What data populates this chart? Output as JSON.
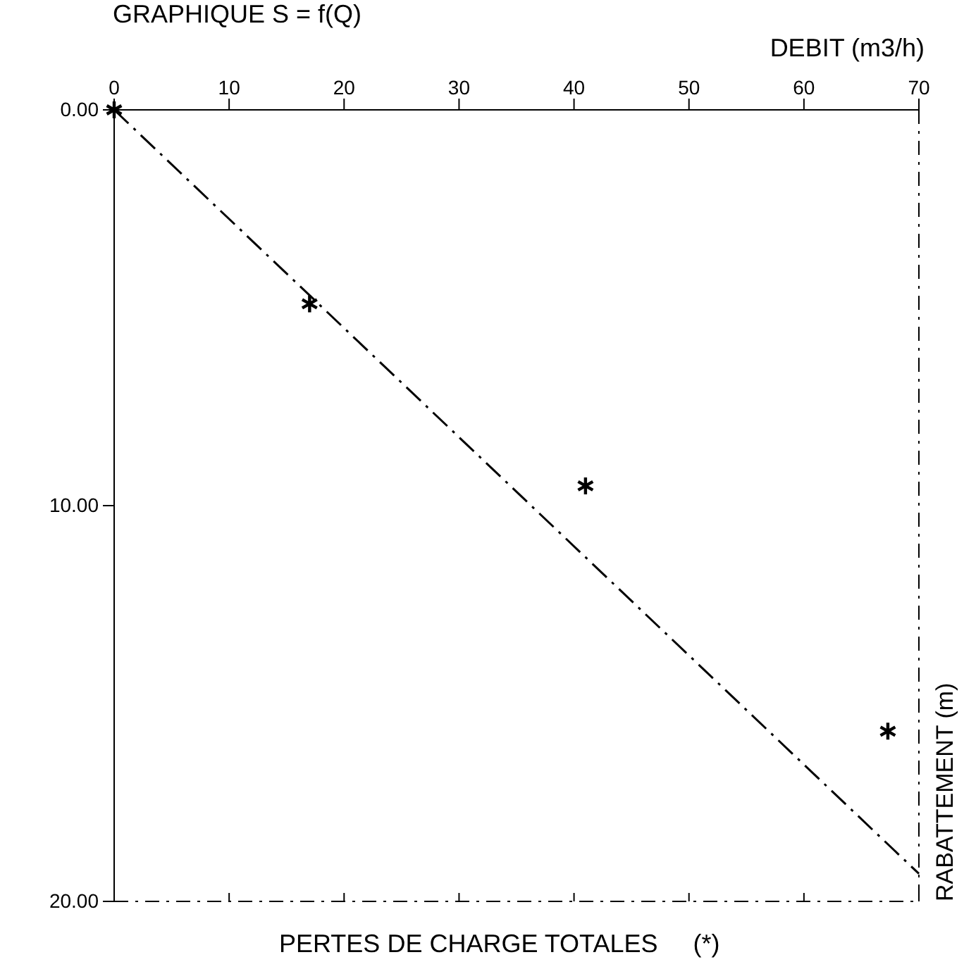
{
  "chart_data": {
    "type": "scatter",
    "title": "GRAPHIQUE S = f(Q)",
    "xlabel": "DEBIT (m3/h)",
    "ylabel": "RABATTEMENT (m)",
    "xlim": [
      0,
      70
    ],
    "xticks": [
      0,
      10,
      20,
      30,
      40,
      50,
      60,
      70
    ],
    "ylim": [
      20,
      0
    ],
    "yticks": [
      {
        "value": 0,
        "label": "0.00"
      },
      {
        "value": 10,
        "label": "10.00"
      },
      {
        "value": 20,
        "label": "20.00"
      }
    ],
    "legend": "bottom",
    "series": [
      {
        "type": "line",
        "color": "#000000",
        "line_style": "dashed",
        "marker": "none",
        "x": [
          0,
          70
        ],
        "values": [
          0,
          19.3
        ]
      },
      {
        "name": "PERTES DE CHARGE TOTALES     (*)",
        "color": "#000000",
        "marker": "cross",
        "x": [
          0,
          17,
          41,
          67.3
        ],
        "values": [
          0,
          4.9,
          9.5,
          15.7
        ]
      }
    ]
  }
}
